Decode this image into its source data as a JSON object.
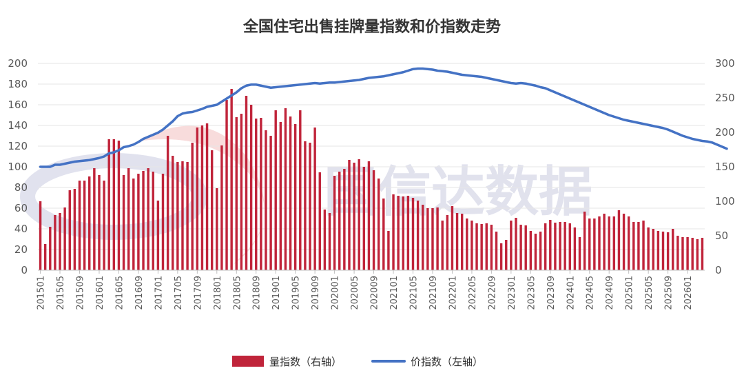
{
  "chart_data": {
    "type": "bar+line",
    "title": "全国住宅出售挂牌量指数和价指数走势",
    "watermark": "国信达数据",
    "left_axis": {
      "ticks": [
        "0",
        "20",
        "40",
        "60",
        "80",
        "100",
        "120",
        "140",
        "160",
        "180",
        "200"
      ],
      "ylim": [
        0,
        200
      ]
    },
    "right_axis": {
      "ticks": [
        "0",
        "50",
        "100",
        "150",
        "200",
        "250",
        "300"
      ],
      "ylim": [
        0,
        300
      ]
    },
    "colors": {
      "bar": "#c0243a",
      "line": "#4472c4"
    },
    "legend": {
      "bar": "量指数（右轴）",
      "line": "价指数（左轴）",
      "position": "bottom"
    },
    "x_tick_labels": [
      "201501",
      "201505",
      "201509",
      "201601",
      "201605",
      "201609",
      "201701",
      "201705",
      "201709",
      "201801",
      "201805",
      "201809",
      "201901",
      "201905",
      "201909",
      "202001",
      "202005",
      "202009",
      "202101",
      "202105",
      "202109",
      "202201",
      "202205",
      "202209",
      "202301",
      "202305",
      "202309",
      "202401",
      "202405",
      "202409",
      "202501",
      "202505",
      "202509",
      "202601"
    ],
    "start": "2015-01",
    "bar_series": {
      "name": "量指数（右轴）",
      "axis": "right",
      "values": [
        100,
        38,
        63,
        80,
        83,
        91,
        116,
        118,
        130,
        130,
        136,
        148,
        138,
        130,
        190,
        190,
        188,
        138,
        148,
        133,
        140,
        144,
        148,
        143,
        101,
        140,
        195,
        166,
        157,
        158,
        157,
        185,
        207,
        210,
        213,
        174,
        119,
        181,
        247,
        263,
        222,
        227,
        253,
        240,
        220,
        221,
        203,
        195,
        232,
        215,
        235,
        223,
        212,
        232,
        187,
        185,
        207,
        142,
        88,
        83,
        137,
        143,
        147,
        160,
        156,
        161,
        150,
        158,
        145,
        133,
        104,
        57,
        110,
        108,
        107,
        108,
        105,
        101,
        95,
        90,
        90,
        91,
        72,
        80,
        93,
        83,
        82,
        75,
        72,
        68,
        67,
        68,
        66,
        56,
        39,
        44,
        72,
        76,
        66,
        65,
        57,
        53,
        56,
        68,
        73,
        69,
        70,
        70,
        68,
        62,
        48,
        85,
        75,
        75,
        78,
        82,
        78,
        78,
        87,
        82,
        78,
        70,
        70,
        72,
        62,
        60,
        57,
        56,
        55,
        60,
        50,
        48,
        48,
        47,
        45,
        47
      ]
    },
    "line_series": {
      "name": "价指数（左轴）",
      "axis": "left",
      "values": [
        100,
        100,
        100,
        102,
        102,
        103,
        104,
        105,
        105.5,
        106,
        106.5,
        107.5,
        108.5,
        110,
        113,
        114,
        116,
        119,
        120,
        121.5,
        124,
        127,
        129,
        131,
        133,
        136,
        140,
        144,
        149,
        151.5,
        152.5,
        153,
        154.5,
        156,
        158,
        159,
        160,
        163,
        166,
        169,
        172,
        176,
        178.5,
        179.5,
        179.5,
        178.5,
        177.5,
        176.5,
        177,
        177.5,
        178,
        178.5,
        179,
        179.5,
        180,
        180.5,
        181,
        180.5,
        181,
        181.5,
        181.5,
        182,
        182.5,
        183,
        183.5,
        184,
        185,
        186,
        186.5,
        187,
        187.5,
        188.5,
        189.5,
        190.5,
        191.5,
        193,
        194.5,
        195,
        195,
        194.5,
        194,
        193,
        192.5,
        192,
        191,
        190,
        189,
        188.5,
        188,
        187.5,
        187,
        186,
        185,
        184,
        183,
        182,
        181,
        180.5,
        181,
        180.5,
        179.5,
        178.5,
        177,
        176,
        174,
        172,
        170,
        168,
        166,
        164,
        162,
        160,
        158,
        156,
        154,
        152,
        150,
        148.5,
        147,
        145.5,
        144.5,
        143.5,
        142.5,
        141.5,
        140.5,
        139.5,
        138.5,
        137.5,
        136,
        134,
        132,
        130,
        128.5,
        127,
        126,
        125,
        124.5,
        123.5,
        121.5,
        119.5,
        117.5
      ]
    }
  }
}
